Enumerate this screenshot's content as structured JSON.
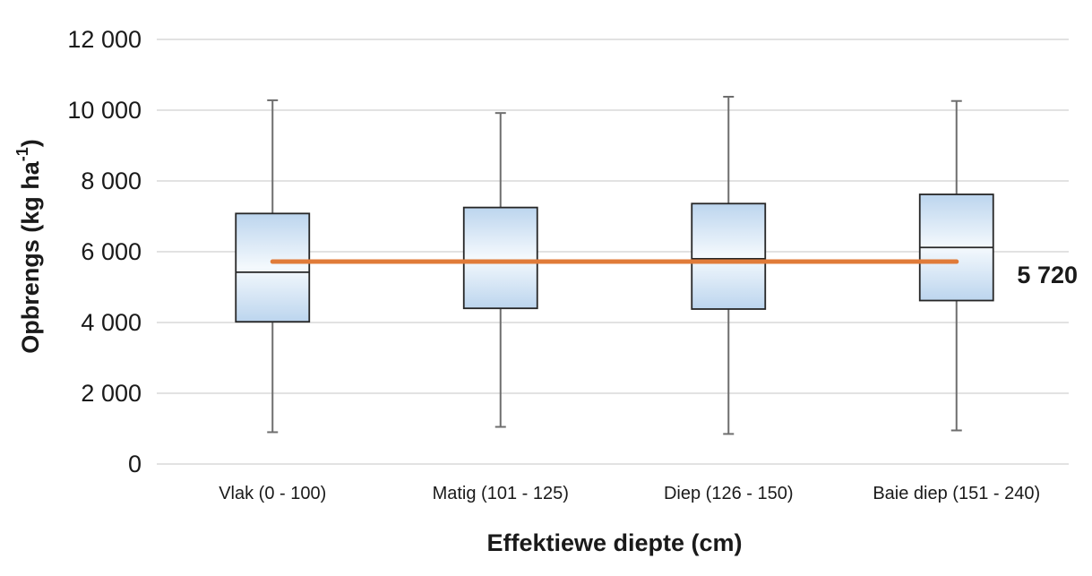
{
  "chart_data": {
    "type": "box",
    "xlabel": "Effektiewe diepte (cm)",
    "ylabel_main": "Opbrengs (kg ha",
    "ylabel_sup": "-1",
    "ylabel_close": ")",
    "ylim": [
      0,
      12000
    ],
    "yticks": [
      0,
      2000,
      4000,
      6000,
      8000,
      10000,
      12000
    ],
    "ytick_labels": [
      "0",
      "2 000",
      "4 000",
      "6 000",
      "8 000",
      "10 000",
      "12 000"
    ],
    "grid": true,
    "categories": [
      "Vlak (0 - 100)",
      "Matig (101 - 125)",
      "Diep (126 - 150)",
      "Baie diep (151 - 240)"
    ],
    "boxes": [
      {
        "min": 900,
        "q1": 4020,
        "median": 5420,
        "q3": 7080,
        "max": 10280
      },
      {
        "min": 1050,
        "q1": 4400,
        "median": 5720,
        "q3": 7250,
        "max": 9920
      },
      {
        "min": 850,
        "q1": 4380,
        "median": 5800,
        "q3": 7360,
        "max": 10380
      },
      {
        "min": 950,
        "q1": 4620,
        "median": 6120,
        "q3": 7620,
        "max": 10260
      }
    ],
    "reference_line": {
      "value": 5720,
      "label": "5 720",
      "color": "#e07b39"
    },
    "box_fill_top": "#bcd5ee",
    "box_fill_mid": "#f4f9fd",
    "box_fill_bottom": "#bcd5ee",
    "grid_color": "#d9d9d9"
  }
}
